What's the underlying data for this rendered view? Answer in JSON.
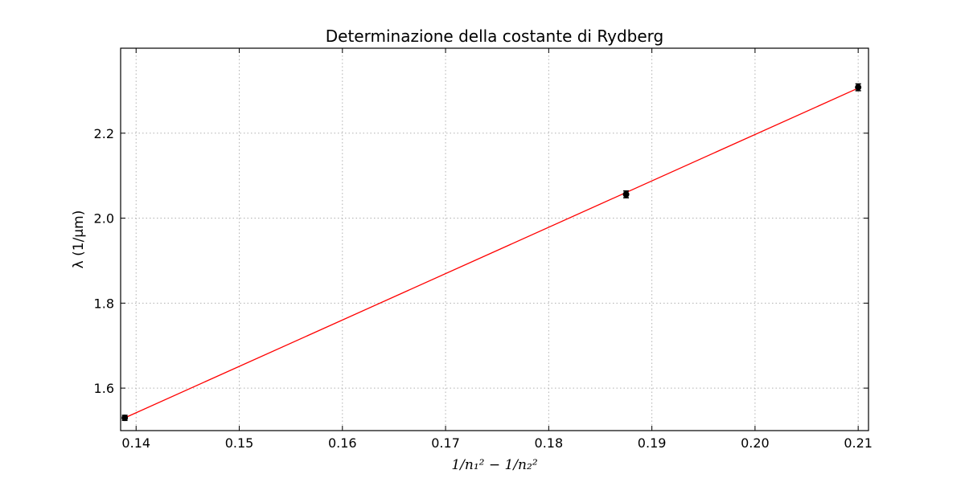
{
  "chart_data": {
    "type": "scatter",
    "title": "Determinazione della costante di Rydberg",
    "xlabel": "1/n₁² − 1/n₂²",
    "ylabel": "λ (1/μm)",
    "xlim": [
      0.1385,
      0.211
    ],
    "ylim": [
      1.5,
      2.4
    ],
    "xticks": [
      0.14,
      0.15,
      0.16,
      0.17,
      0.18,
      0.19,
      0.2,
      0.21
    ],
    "xtick_labels": [
      "0.14",
      "0.15",
      "0.16",
      "0.17",
      "0.18",
      "0.19",
      "0.20",
      "0.21"
    ],
    "yticks": [
      1.6,
      1.8,
      2.0,
      2.2
    ],
    "ytick_labels": [
      "1.6",
      "1.8",
      "2.0",
      "2.2"
    ],
    "grid": true,
    "series": [
      {
        "kind": "points-with-errorbars",
        "color": "#000000",
        "x": [
          0.1389,
          0.1875,
          0.21
        ],
        "y": [
          1.53,
          2.056,
          2.308
        ],
        "yerr": [
          0.006,
          0.008,
          0.008
        ]
      },
      {
        "kind": "fit-line",
        "color": "#ff0000",
        "x": [
          0.1389,
          0.21
        ],
        "y": [
          1.53,
          2.306
        ]
      }
    ]
  }
}
